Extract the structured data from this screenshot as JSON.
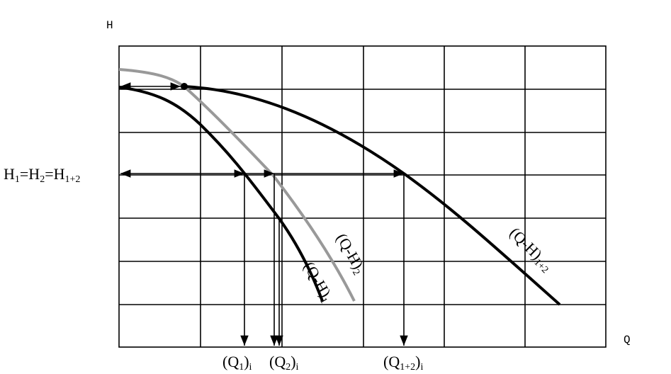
{
  "axis_labels": {
    "y": "H",
    "x": "Q"
  },
  "head_label": [
    "H",
    "1",
    "=H",
    "2",
    "=H",
    "1+2"
  ],
  "curve_labels": [
    [
      "(Q-H)",
      "1"
    ],
    [
      "(Q-H)",
      "2"
    ],
    [
      "(Q-H)",
      "1+2"
    ]
  ],
  "flow_labels": [
    [
      "(Q",
      "1",
      ")",
      "i"
    ],
    [
      "(Q",
      "2",
      ")",
      "i"
    ],
    [
      "(Q",
      "1+2",
      ")",
      "i"
    ]
  ]
}
